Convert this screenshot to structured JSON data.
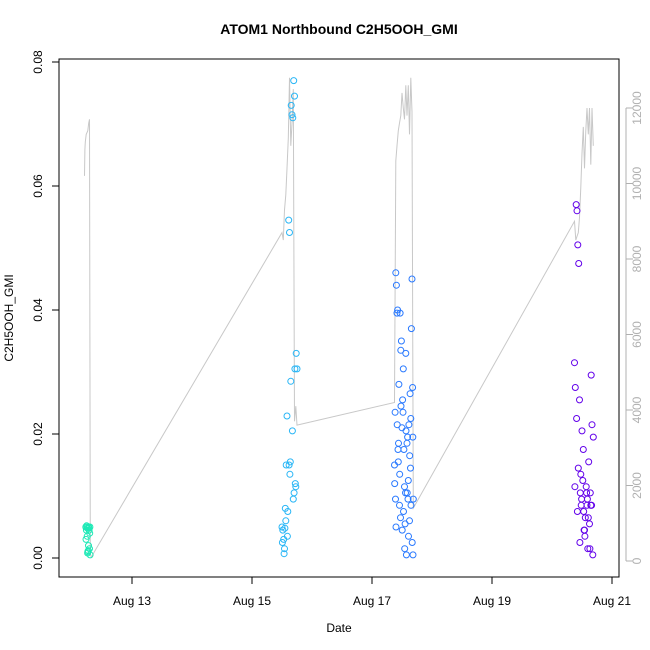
{
  "chart_data": {
    "type": "scatter",
    "title": "ATOM1 Northbound C2H5OOH_GMI",
    "xlabel": "Date",
    "ylabel": "C2H5OOH_GMI",
    "x_ticks": [
      {
        "date": "2016-08-13",
        "label": "Aug 13"
      },
      {
        "date": "2016-08-15",
        "label": "Aug 15"
      },
      {
        "date": "2016-08-17",
        "label": "Aug 17"
      },
      {
        "date": "2016-08-19",
        "label": "Aug 19"
      },
      {
        "date": "2016-08-21",
        "label": "Aug 21"
      }
    ],
    "xlim": [
      "2016-08-12T00:00",
      "2016-08-21T00:00"
    ],
    "ylim": [
      0,
      0.08
    ],
    "y_ticks": [
      "0.00",
      "0.02",
      "0.04",
      "0.06",
      "0.08"
    ],
    "y2_ticks": [
      "0",
      "2000",
      "4000",
      "6000",
      "8000",
      "10000",
      "12000"
    ],
    "y2lim": [
      0,
      12500
    ],
    "altitude_color": "#c8c8c8",
    "point_marker": "open circle",
    "grid": false,
    "flights": [
      {
        "color": "#1de9b6",
        "x": [
          "2016-08-12T05:30",
          "2016-08-12T05:45",
          "2016-08-12T06:00",
          "2016-08-12T06:10",
          "2016-08-12T06:20",
          "2016-08-12T06:30",
          "2016-08-12T06:40",
          "2016-08-12T06:50",
          "2016-08-12T07:00",
          "2016-08-12T07:10",
          "2016-08-12T05:35",
          "2016-08-12T06:05",
          "2016-08-12T06:35",
          "2016-08-12T07:05",
          "2016-08-12T05:50",
          "2016-08-12T06:15",
          "2016-08-12T06:45",
          "2016-08-12T07:15"
        ],
        "y": [
          0.005,
          0.0045,
          0.005,
          0.0048,
          0.001,
          0.0012,
          0.005,
          0.0045,
          0.0015,
          0.005,
          0.003,
          0.0035,
          0.002,
          0.004,
          0.0052,
          0.0008,
          0.0048,
          0.0005
        ]
      },
      {
        "color": "#29b6f6",
        "x": [
          "2016-08-15T12:00",
          "2016-08-15T12:20",
          "2016-08-15T12:40",
          "2016-08-15T13:00",
          "2016-08-15T13:20",
          "2016-08-15T13:40",
          "2016-08-15T14:00",
          "2016-08-15T14:20",
          "2016-08-15T14:40",
          "2016-08-15T15:00",
          "2016-08-15T15:20",
          "2016-08-15T15:40",
          "2016-08-15T16:00",
          "2016-08-15T16:20",
          "2016-08-15T16:40",
          "2016-08-15T17:00",
          "2016-08-15T17:20",
          "2016-08-15T17:40",
          "2016-08-15T18:00",
          "2016-08-15T12:10",
          "2016-08-15T12:50",
          "2016-08-15T13:30",
          "2016-08-15T14:10",
          "2016-08-15T14:50",
          "2016-08-15T15:30",
          "2016-08-15T16:10",
          "2016-08-15T16:50",
          "2016-08-15T17:30",
          "2016-08-15T13:10",
          "2016-08-15T15:10",
          "2016-08-15T16:30",
          "2016-08-15T17:10"
        ],
        "y": [
          0.005,
          0.0045,
          0.003,
          0.0015,
          0.008,
          0.015,
          0.0229,
          0.0075,
          0.0545,
          0.0525,
          0.0155,
          0.073,
          0.0715,
          0.071,
          0.077,
          0.0745,
          0.012,
          0.033,
          0.0305,
          0.0025,
          0.0007,
          0.006,
          0.0035,
          0.015,
          0.0285,
          0.0205,
          0.0105,
          0.0115,
          0.0048,
          0.0135,
          0.0095,
          0.0305
        ]
      },
      {
        "color": "#2979ff",
        "x": [
          "2016-08-17T09:00",
          "2016-08-17T09:15",
          "2016-08-17T09:30",
          "2016-08-17T09:45",
          "2016-08-17T10:00",
          "2016-08-17T10:15",
          "2016-08-17T10:30",
          "2016-08-17T10:45",
          "2016-08-17T11:00",
          "2016-08-17T11:15",
          "2016-08-17T11:30",
          "2016-08-17T11:45",
          "2016-08-17T12:00",
          "2016-08-17T12:15",
          "2016-08-17T12:30",
          "2016-08-17T12:45",
          "2016-08-17T13:00",
          "2016-08-17T13:15",
          "2016-08-17T13:30",
          "2016-08-17T13:45",
          "2016-08-17T14:00",
          "2016-08-17T14:15",
          "2016-08-17T14:30",
          "2016-08-17T14:45",
          "2016-08-17T15:00",
          "2016-08-17T15:15",
          "2016-08-17T15:30",
          "2016-08-17T15:45",
          "2016-08-17T16:00",
          "2016-08-17T16:15",
          "2016-08-17T16:30",
          "2016-08-17T09:05",
          "2016-08-17T09:35",
          "2016-08-17T10:05",
          "2016-08-17T10:35",
          "2016-08-17T11:05",
          "2016-08-17T11:35",
          "2016-08-17T12:05",
          "2016-08-17T12:35",
          "2016-08-17T13:05",
          "2016-08-17T13:35",
          "2016-08-17T14:05",
          "2016-08-17T14:35",
          "2016-08-17T15:05",
          "2016-08-17T15:35",
          "2016-08-17T16:05",
          "2016-08-17T16:25",
          "2016-08-17T09:25",
          "2016-08-17T10:25",
          "2016-08-17T11:25",
          "2016-08-17T12:25",
          "2016-08-17T13:25",
          "2016-08-17T14:25",
          "2016-08-17T15:25",
          "2016-08-17T16:20"
        ],
        "y": [
          0.015,
          0.0235,
          0.046,
          0.044,
          0.0395,
          0.04,
          0.0155,
          0.028,
          0.0085,
          0.0395,
          0.0335,
          0.035,
          0.021,
          0.0255,
          0.0305,
          0.0175,
          0.0115,
          0.0055,
          0.033,
          0.0005,
          0.0185,
          0.0195,
          0.0125,
          0.0215,
          0.006,
          0.0265,
          0.0225,
          0.037,
          0.045,
          0.0275,
          0.0095,
          0.012,
          0.005,
          0.0215,
          0.0185,
          0.0135,
          0.0245,
          0.0045,
          0.0075,
          0.0015,
          0.0205,
          0.0105,
          0.0035,
          0.0165,
          0.0085,
          0.0025,
          0.0005,
          0.0095,
          0.0175,
          0.0065,
          0.0235,
          0.0105,
          0.0095,
          0.0145,
          0.0195
        ]
      },
      {
        "color": "#6200ea",
        "x": [
          "2016-08-20T09:00",
          "2016-08-20T09:20",
          "2016-08-20T09:40",
          "2016-08-20T10:00",
          "2016-08-20T10:20",
          "2016-08-20T10:40",
          "2016-08-20T11:00",
          "2016-08-20T11:20",
          "2016-08-20T11:40",
          "2016-08-20T12:00",
          "2016-08-20T12:20",
          "2016-08-20T12:40",
          "2016-08-20T13:00",
          "2016-08-20T13:20",
          "2016-08-20T13:40",
          "2016-08-20T14:00",
          "2016-08-20T14:20",
          "2016-08-20T14:40",
          "2016-08-20T15:00",
          "2016-08-20T15:20",
          "2016-08-20T15:40",
          "2016-08-20T16:00",
          "2016-08-20T16:20",
          "2016-08-20T09:10",
          "2016-08-20T09:50",
          "2016-08-20T10:30",
          "2016-08-20T11:10",
          "2016-08-20T11:50",
          "2016-08-20T12:30",
          "2016-08-20T13:10",
          "2016-08-20T13:50",
          "2016-08-20T14:30",
          "2016-08-20T15:10",
          "2016-08-20T15:50",
          "2016-08-20T16:30",
          "2016-08-20T10:10",
          "2016-08-20T11:30",
          "2016-08-20T12:50",
          "2016-08-20T14:10",
          "2016-08-20T15:30"
        ],
        "y": [
          0.0315,
          0.0275,
          0.057,
          0.056,
          0.0505,
          0.0475,
          0.0255,
          0.0105,
          0.0085,
          0.0205,
          0.0125,
          0.0075,
          0.0045,
          0.0065,
          0.0115,
          0.0085,
          0.0015,
          0.0155,
          0.0055,
          0.0105,
          0.0295,
          0.0215,
          0.0005,
          0.0115,
          0.0225,
          0.0145,
          0.0025,
          0.0095,
          0.0175,
          0.0035,
          0.0105,
          0.0065,
          0.0015,
          0.0085,
          0.0195,
          0.0075,
          0.0135,
          0.0045,
          0.0095,
          0.0085
        ]
      }
    ],
    "altitude": {
      "x": [
        "2016-08-12T05:00",
        "2016-08-12T05:10",
        "2016-08-12T05:20",
        "2016-08-12T05:40",
        "2016-08-12T06:20",
        "2016-08-12T06:40",
        "2016-08-12T07:00",
        "2016-08-12T07:20",
        "2016-08-12T07:40",
        "2016-08-15T12:00",
        "2016-08-15T12:30",
        "2016-08-15T13:00",
        "2016-08-15T13:30",
        "2016-08-15T14:00",
        "2016-08-15T14:30",
        "2016-08-15T15:00",
        "2016-08-15T15:30",
        "2016-08-15T16:00",
        "2016-08-15T16:30",
        "2016-08-15T17:00",
        "2016-08-15T17:30",
        "2016-08-15T18:00",
        "2016-08-17T09:00",
        "2016-08-17T09:30",
        "2016-08-17T10:00",
        "2016-08-17T10:30",
        "2016-08-17T11:00",
        "2016-08-17T11:30",
        "2016-08-17T12:00",
        "2016-08-17T12:30",
        "2016-08-17T13:00",
        "2016-08-17T13:30",
        "2016-08-17T14:00",
        "2016-08-17T14:30",
        "2016-08-17T15:00",
        "2016-08-17T15:30",
        "2016-08-17T16:00",
        "2016-08-17T16:30",
        "2016-08-20T09:00",
        "2016-08-20T09:30",
        "2016-08-20T10:00",
        "2016-08-20T10:30",
        "2016-08-20T11:00",
        "2016-08-20T11:30",
        "2016-08-20T12:00",
        "2016-08-20T12:30",
        "2016-08-20T13:00",
        "2016-08-20T13:30",
        "2016-08-20T14:00",
        "2016-08-20T14:30",
        "2016-08-20T15:00",
        "2016-08-20T15:30",
        "2016-08-20T16:00",
        "2016-08-20T16:30"
      ],
      "y": [
        10200,
        10900,
        11100,
        11300,
        11400,
        11600,
        11700,
        200,
        100,
        8700,
        8500,
        9300,
        9700,
        10400,
        11200,
        12800,
        11000,
        11600,
        12500,
        3700,
        4100,
        3600,
        4200,
        10600,
        11000,
        11400,
        11600,
        11800,
        12400,
        12000,
        11700,
        12600,
        11800,
        12600,
        11300,
        12800,
        11900,
        1400,
        9000,
        8500,
        8600,
        8700,
        9100,
        9900,
        10800,
        11500,
        10400,
        11400,
        12000,
        11300,
        12000,
        10500,
        12000,
        11000
      ]
    }
  }
}
